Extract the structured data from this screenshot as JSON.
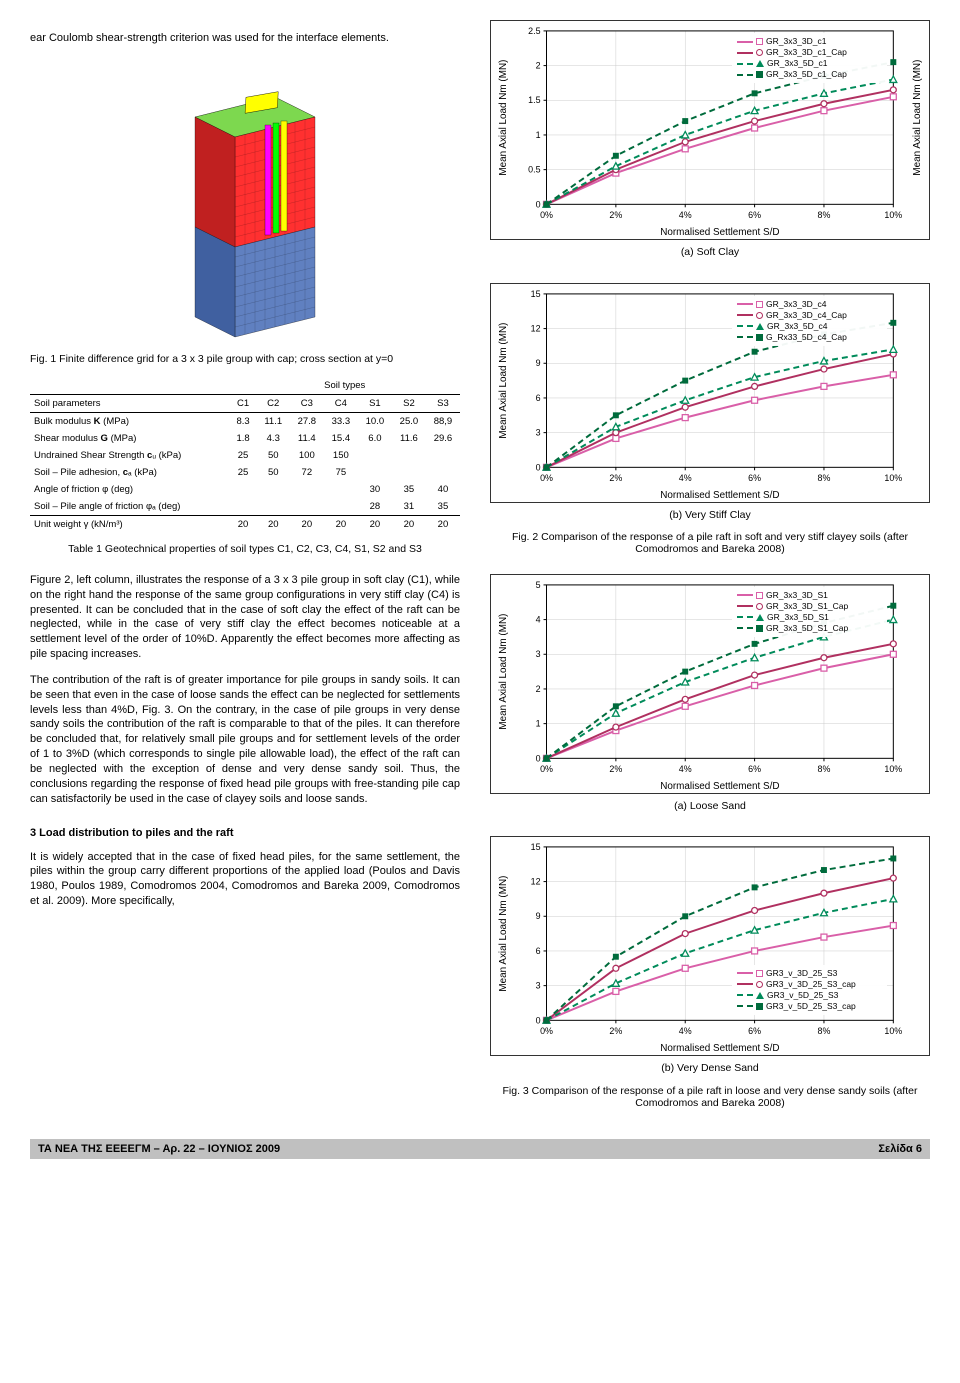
{
  "text": {
    "intro": "ear Coulomb shear-strength criterion was used for the interface elements.",
    "fig1_caption": "Fig. 1  Finite difference grid for a 3 x 3 pile group with cap; cross section at y=0",
    "soil_types_hdr": "Soil types",
    "soil_parameters_hdr": "Soil parameters",
    "tbl1_caption": "Table 1 Geotechnical properties of soil types C1, C2, C3, C4, S1, S2 and S3",
    "para_fig2": "Figure 2, left column, illustrates the response of a 3 x 3 pile group in soft clay (C1), while on the right hand the response of the same group configurations in very stiff clay (C4) is presented. It can be concluded that in the case of soft clay the effect of the raft can be neglected, while in the case of very stiff clay the effect becomes noticeable at a settlement level of the order of 10%D. Apparently the effect becomes more affecting as pile spacing increases.",
    "para_raft": "The contribution of the raft is of greater importance for pile groups in sandy soils. It can be seen that even in the case of loose sands the effect can be neglected for settlements levels less than 4%D, Fig. 3. On the contrary, in the case of pile groups in very dense sandy soils the contribution of the raft is comparable to that of the piles. It can therefore be concluded that, for relatively small pile groups and for settlement levels of the order of 1 to 3%D (which corresponds to single pile allowable load), the effect of the raft can be neglected with the exception of  dense and very dense sandy soil. Thus, the conclusions regarding the response of fixed head pile groups with free-standing pile cap can satisfactorily be used in the case of clayey soils and loose sands.",
    "sec3_title": "3     Load distribution to piles and the raft",
    "para_sec3": "It is widely accepted that in the case of fixed head piles, for the same settlement, the piles within the group carry different proportions of the applied load (Poulos and Davis 1980, Poulos 1989, Comodromos 2004, Comodromos and Bareka 2009, Comodromos et al. 2009). More specifically,",
    "fig2a_sub": "(a) Soft Clay",
    "fig2b_sub": "(b) Very Stiff Clay",
    "fig2_caption": "Fig. 2  Comparison of the response of a pile raft in soft and very stiff clayey soils (after Comodromos and Bareka 2008)",
    "fig3a_sub": "(a) Loose Sand",
    "fig3b_sub": "(b) Very Dense Sand",
    "fig3_caption": "Fig. 3  Comparison of the response of a pile raft in loose and very dense sandy soils (after Comodromos and Bareka 2008)",
    "footer_left": "ΤΑ ΝΕΑ ΤΗΣ ΕΕΕΕΓΜ – Αρ. 22 – ΙΟΥΝΙΟΣ 2009",
    "footer_right": "Σελίδα 6",
    "xlabel": "Normalised Settlement S/D",
    "ylabel": "Mean Axial Load Nm (MN)"
  },
  "table": {
    "cols": [
      "C1",
      "C2",
      "C3",
      "C4",
      "S1",
      "S2",
      "S3"
    ],
    "rows": [
      {
        "label": "Bulk modulus K (MPa)",
        "vals": [
          "8.3",
          "11.1",
          "27.8",
          "33.3",
          "10.0",
          "25.0",
          "88,9"
        ]
      },
      {
        "label": "Shear modulus G (MPa)",
        "vals": [
          "1.8",
          "4.3",
          "11.4",
          "15.4",
          "6.0",
          "11.6",
          "29.6"
        ]
      },
      {
        "label": "Undrained Shear Strength cᵤ (kPa)",
        "vals": [
          "25",
          "50",
          "100",
          "150",
          "",
          "",
          ""
        ]
      },
      {
        "label": "Soil – Pile adhesion, cₐ (kPa)",
        "vals": [
          "25",
          "50",
          "72",
          "75",
          "",
          "",
          ""
        ]
      },
      {
        "label": "Angle of friction φ (deg)",
        "vals": [
          "",
          "",
          "",
          "",
          "30",
          "35",
          "40"
        ]
      },
      {
        "label": "Soil – Pile angle of friction φₐ (deg)",
        "vals": [
          "",
          "",
          "",
          "",
          "28",
          "31",
          "35"
        ]
      },
      {
        "label": "Unit weight γ (kN/m³)",
        "vals": [
          "20",
          "20",
          "20",
          "20",
          "20",
          "20",
          "20"
        ]
      }
    ]
  },
  "charts": {
    "colors": {
      "series1": "#d95fa8",
      "series2": "#b03060",
      "series3": "#008b5a",
      "series4": "#006b3c",
      "grid": "#cccccc",
      "axis": "#000000",
      "bg": "#ffffff"
    },
    "xticks": [
      "0%",
      "2%",
      "4%",
      "6%",
      "8%",
      "10%"
    ],
    "fig2a": {
      "ylim": [
        0,
        2.5
      ],
      "ytick_step": 0.5,
      "legend_pos": "top-right",
      "legend": [
        "GR_3x3_3D_c1",
        "GR_3x3_3D_c1_Cap",
        "GR_3x3_5D_c1",
        "GR_3x3_5D_c1_Cap"
      ],
      "s1": [
        [
          0,
          0
        ],
        [
          2,
          0.45
        ],
        [
          4,
          0.8
        ],
        [
          6,
          1.1
        ],
        [
          8,
          1.35
        ],
        [
          10,
          1.55
        ]
      ],
      "s2": [
        [
          0,
          0
        ],
        [
          2,
          0.5
        ],
        [
          4,
          0.9
        ],
        [
          6,
          1.2
        ],
        [
          8,
          1.45
        ],
        [
          10,
          1.65
        ]
      ],
      "s3": [
        [
          0,
          0
        ],
        [
          2,
          0.55
        ],
        [
          4,
          1.0
        ],
        [
          6,
          1.35
        ],
        [
          8,
          1.6
        ],
        [
          10,
          1.8
        ]
      ],
      "s4": [
        [
          0,
          0
        ],
        [
          2,
          0.7
        ],
        [
          4,
          1.2
        ],
        [
          6,
          1.6
        ],
        [
          8,
          1.85
        ],
        [
          10,
          2.05
        ]
      ]
    },
    "fig2b": {
      "ylim": [
        0,
        15
      ],
      "ytick_step": 3,
      "legend_pos": "top-right",
      "legend": [
        "GR_3x3_3D_c4",
        "GR_3x3_3D_c4_Cap",
        "GR_3x3_5D_c4",
        "G_Rx33_5D_c4_Cap"
      ],
      "s1": [
        [
          0,
          0
        ],
        [
          2,
          2.5
        ],
        [
          4,
          4.3
        ],
        [
          6,
          5.8
        ],
        [
          8,
          7
        ],
        [
          10,
          8
        ]
      ],
      "s2": [
        [
          0,
          0
        ],
        [
          2,
          3
        ],
        [
          4,
          5.2
        ],
        [
          6,
          7
        ],
        [
          8,
          8.5
        ],
        [
          10,
          9.8
        ]
      ],
      "s3": [
        [
          0,
          0
        ],
        [
          2,
          3.5
        ],
        [
          4,
          5.8
        ],
        [
          6,
          7.8
        ],
        [
          8,
          9.2
        ],
        [
          10,
          10.2
        ]
      ],
      "s4": [
        [
          0,
          0
        ],
        [
          2,
          4.5
        ],
        [
          4,
          7.5
        ],
        [
          6,
          10
        ],
        [
          8,
          11.5
        ],
        [
          10,
          12.5
        ]
      ]
    },
    "fig3a": {
      "ylim": [
        0,
        5
      ],
      "ytick_step": 1,
      "legend_pos": "top-right",
      "legend": [
        "GR_3x3_3D_S1",
        "GR_3x3_3D_S1_Cap",
        "GR_3x3_5D_S1",
        "GR_3x3_5D_S1_Cap"
      ],
      "s1": [
        [
          0,
          0
        ],
        [
          2,
          0.8
        ],
        [
          4,
          1.5
        ],
        [
          6,
          2.1
        ],
        [
          8,
          2.6
        ],
        [
          10,
          3.0
        ]
      ],
      "s2": [
        [
          0,
          0
        ],
        [
          2,
          0.9
        ],
        [
          4,
          1.7
        ],
        [
          6,
          2.4
        ],
        [
          8,
          2.9
        ],
        [
          10,
          3.3
        ]
      ],
      "s3": [
        [
          0,
          0
        ],
        [
          2,
          1.3
        ],
        [
          4,
          2.2
        ],
        [
          6,
          2.9
        ],
        [
          8,
          3.5
        ],
        [
          10,
          4.0
        ]
      ],
      "s4": [
        [
          0,
          0
        ],
        [
          2,
          1.5
        ],
        [
          4,
          2.5
        ],
        [
          6,
          3.3
        ],
        [
          8,
          3.9
        ],
        [
          10,
          4.4
        ]
      ]
    },
    "fig3b": {
      "ylim": [
        0,
        15
      ],
      "ytick_step": 3,
      "legend_pos": "bottom-right",
      "legend": [
        "GR3_v_3D_25_S3",
        "GR3_v_3D_25_S3_cap",
        "GR3_v_5D_25_S3",
        "GR3_v_5D_25_S3_cap"
      ],
      "s1": [
        [
          0,
          0
        ],
        [
          2,
          2.5
        ],
        [
          4,
          4.5
        ],
        [
          6,
          6
        ],
        [
          8,
          7.2
        ],
        [
          10,
          8.2
        ]
      ],
      "s2": [
        [
          0,
          0
        ],
        [
          2,
          4.5
        ],
        [
          4,
          7.5
        ],
        [
          6,
          9.5
        ],
        [
          8,
          11
        ],
        [
          10,
          12.3
        ]
      ],
      "s3": [
        [
          0,
          0
        ],
        [
          2,
          3.2
        ],
        [
          4,
          5.8
        ],
        [
          6,
          7.8
        ],
        [
          8,
          9.3
        ],
        [
          10,
          10.5
        ]
      ],
      "s4": [
        [
          0,
          0
        ],
        [
          2,
          5.5
        ],
        [
          4,
          9
        ],
        [
          6,
          11.5
        ],
        [
          8,
          13
        ],
        [
          10,
          14
        ]
      ]
    }
  },
  "mesh": {
    "top_color": "#7dd84f",
    "block_color": "#ff3030",
    "lower_color": "#6080c0",
    "pile_colors": [
      "#ff00ff",
      "#00ff00",
      "#ffff00"
    ]
  }
}
